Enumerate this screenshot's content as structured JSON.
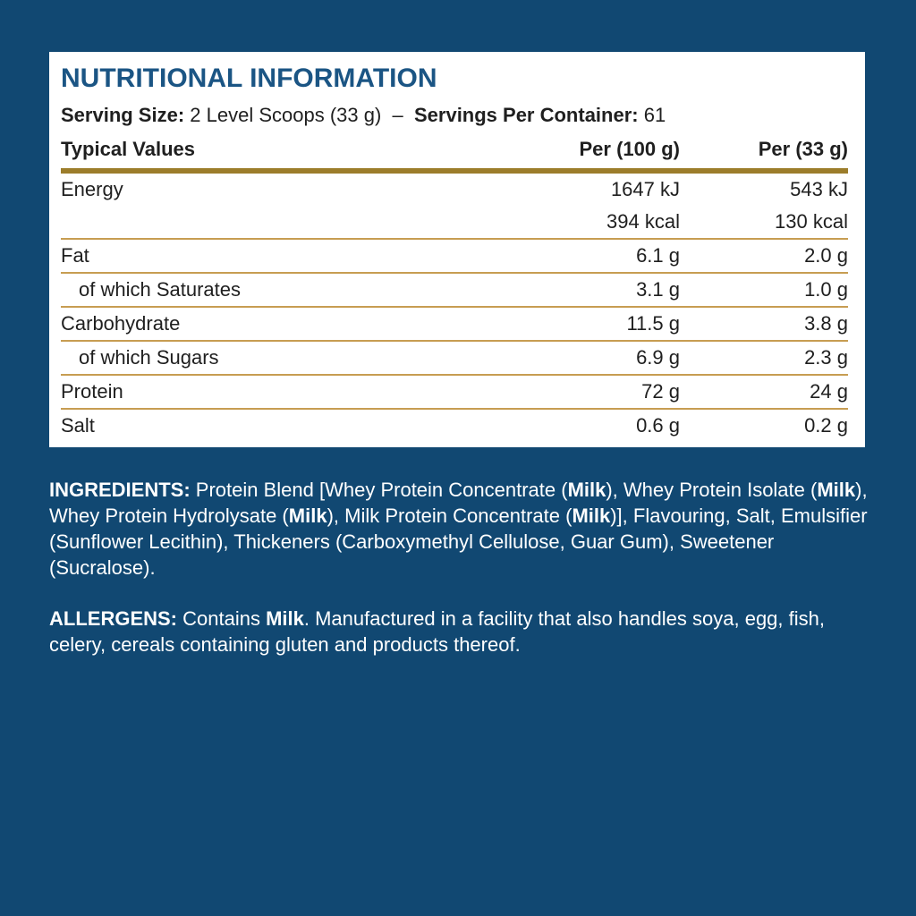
{
  "colors": {
    "bg": "#114872",
    "panel-bg": "#ffffff",
    "title": "#1B5584",
    "rule-thick": "#9C7D2B",
    "rule-thin": "#C79D52",
    "text-dark": "#1F1F1F",
    "text-light": "#FFFFFF"
  },
  "panel": {
    "title": "NUTRITIONAL INFORMATION",
    "serving_segments": [
      {
        "text": "Serving Size:",
        "bold": true
      },
      {
        "text": " 2 Level Scoops (33 g)  –  ",
        "bold": false
      },
      {
        "text": "Servings Per Container:",
        "bold": true
      },
      {
        "text": " 61",
        "bold": false
      }
    ],
    "table": {
      "headers": [
        "Typical Values",
        "Per (100 g)",
        "Per (33 g)"
      ],
      "rows": [
        {
          "key": "energy",
          "label": "Energy",
          "indent": false,
          "per100": [
            "1647 kJ",
            "394 kcal"
          ],
          "per33": [
            "543 kJ",
            "130 kcal"
          ],
          "separator": true
        },
        {
          "key": "fat",
          "label": "Fat",
          "indent": false,
          "per100": [
            "6.1 g"
          ],
          "per33": [
            "2.0 g"
          ],
          "separator": true
        },
        {
          "key": "saturates",
          "label": "of which Saturates",
          "indent": true,
          "per100": [
            "3.1 g"
          ],
          "per33": [
            "1.0 g"
          ],
          "separator": true
        },
        {
          "key": "carbohydrate",
          "label": "Carbohydrate",
          "indent": false,
          "per100": [
            "11.5 g"
          ],
          "per33": [
            "3.8 g"
          ],
          "separator": true
        },
        {
          "key": "sugars",
          "label": "of which Sugars",
          "indent": true,
          "per100": [
            "6.9 g"
          ],
          "per33": [
            "2.3 g"
          ],
          "separator": true
        },
        {
          "key": "protein",
          "label": "Protein",
          "indent": false,
          "per100": [
            "72 g"
          ],
          "per33": [
            "24 g"
          ],
          "separator": true
        },
        {
          "key": "salt",
          "label": "Salt",
          "indent": false,
          "per100": [
            "0.6 g"
          ],
          "per33": [
            "0.2 g"
          ],
          "separator": false
        }
      ]
    }
  },
  "ingredients": {
    "segments": [
      {
        "text": "INGREDIENTS: ",
        "bold": true
      },
      {
        "text": "Protein Blend [Whey Protein Concentrate (",
        "bold": false
      },
      {
        "text": "Milk",
        "bold": true
      },
      {
        "text": "), Whey Protein Isolate (",
        "bold": false
      },
      {
        "text": "Milk",
        "bold": true
      },
      {
        "text": "), Whey Protein Hydrolysate (",
        "bold": false
      },
      {
        "text": "Milk",
        "bold": true
      },
      {
        "text": "), Milk Protein Concentrate (",
        "bold": false
      },
      {
        "text": "Milk",
        "bold": true
      },
      {
        "text": ")], Flavouring, Salt, Emulsifier (Sunflower Lecithin), Thickeners (Carboxymethyl Cellulose, Guar Gum), Sweetener (Sucralose).",
        "bold": false
      }
    ]
  },
  "allergens": {
    "segments": [
      {
        "text": "ALLERGENS: ",
        "bold": true
      },
      {
        "text": "Contains ",
        "bold": false
      },
      {
        "text": "Milk",
        "bold": true
      },
      {
        "text": ". Manufactured in a facility that also handles soya, egg, fish, celery, cereals containing gluten and products thereof.",
        "bold": false
      }
    ]
  }
}
